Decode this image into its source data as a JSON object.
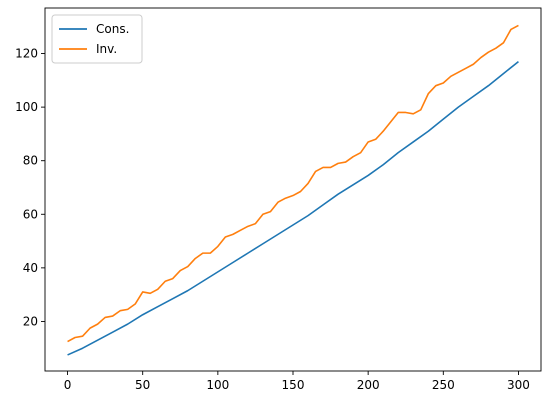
{
  "chart_data": {
    "type": "line",
    "title": "",
    "xlabel": "",
    "ylabel": "",
    "xlim": [
      -15,
      315
    ],
    "ylim": [
      1.5,
      137
    ],
    "xticks": [
      0,
      50,
      100,
      150,
      200,
      250,
      300
    ],
    "xtick_labels": [
      "0",
      "50",
      "100",
      "150",
      "200",
      "250",
      "300"
    ],
    "yticks": [
      20,
      40,
      60,
      80,
      100,
      120
    ],
    "ytick_labels": [
      "20",
      "40",
      "60",
      "80",
      "100",
      "120"
    ],
    "grid": false,
    "legend_position": "top-left",
    "series": [
      {
        "name": "Cons.",
        "color": "#1f77b4",
        "x": [
          0,
          10,
          20,
          30,
          40,
          50,
          60,
          70,
          80,
          90,
          100,
          110,
          120,
          130,
          140,
          150,
          160,
          170,
          180,
          190,
          200,
          210,
          220,
          230,
          240,
          250,
          260,
          270,
          280,
          290,
          300
        ],
        "y": [
          7.5,
          10.0,
          13.0,
          16.0,
          19.0,
          22.5,
          25.5,
          28.5,
          31.5,
          35.0,
          38.5,
          42.0,
          45.5,
          49.0,
          52.5,
          56.0,
          59.5,
          63.5,
          67.5,
          71.0,
          74.5,
          78.5,
          83.0,
          87.0,
          91.0,
          95.5,
          100.0,
          104.0,
          108.0,
          112.5,
          117.0
        ]
      },
      {
        "name": "Inv.",
        "color": "#ff7f0e",
        "x": [
          0,
          5,
          10,
          15,
          20,
          25,
          30,
          35,
          40,
          45,
          50,
          55,
          60,
          65,
          70,
          75,
          80,
          85,
          90,
          95,
          100,
          105,
          110,
          115,
          120,
          125,
          130,
          135,
          140,
          145,
          150,
          155,
          160,
          165,
          170,
          175,
          180,
          185,
          190,
          195,
          200,
          205,
          210,
          215,
          220,
          225,
          230,
          235,
          240,
          245,
          250,
          255,
          260,
          265,
          270,
          275,
          280,
          285,
          290,
          295,
          300
        ],
        "y": [
          12.5,
          14.0,
          14.5,
          17.5,
          19.0,
          21.5,
          22.0,
          24.0,
          24.5,
          26.5,
          31.0,
          30.5,
          32.0,
          35.0,
          36.0,
          39.0,
          40.5,
          43.5,
          45.5,
          45.5,
          48.0,
          51.5,
          52.5,
          54.0,
          55.5,
          56.5,
          60.0,
          61.0,
          64.5,
          66.0,
          67.0,
          68.5,
          71.5,
          76.0,
          77.5,
          77.5,
          79.0,
          79.5,
          81.5,
          83.0,
          87.0,
          88.0,
          91.0,
          94.5,
          98.0,
          98.0,
          97.5,
          99.0,
          105.0,
          108.0,
          109.0,
          111.5,
          113.0,
          114.5,
          116.0,
          118.5,
          120.5,
          122.0,
          124.0,
          129.0,
          130.5
        ]
      }
    ]
  }
}
